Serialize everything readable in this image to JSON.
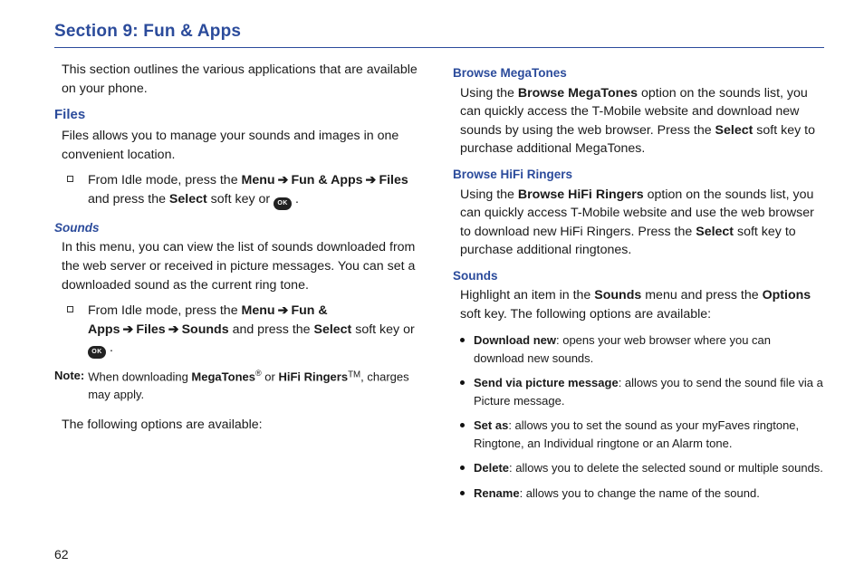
{
  "section_title": "Section 9: Fun & Apps",
  "page_number": "62",
  "left": {
    "intro": "This section outlines the various applications that are available on your phone.",
    "files_heading": "Files",
    "files_body": "Files allows you to manage your sounds and images in one convenient location.",
    "files_step_pre": "From Idle mode, press the ",
    "menu_label": "Menu",
    "arrow": "➔",
    "funapps_label": "Fun & Apps",
    "files_label": "Files",
    "files_step_mid": " and press the ",
    "select_label": "Select",
    "files_step_post": " soft key or ",
    "sounds_heading": "Sounds",
    "sounds_body": "In this menu, you can view the list of sounds downloaded from the web server or received in picture messages. You can set a downloaded sound as the current ring tone.",
    "sounds_step_pre": "From Idle mode, press the ",
    "sounds_label": "Sounds",
    "sounds_step_mid": " and press the ",
    "sounds_step_post": " soft key or ",
    "note_label": "Note:",
    "note_pre": "When downloading ",
    "megatones": "MegaTones",
    "note_or": " or ",
    "hifi": "HiFi Ringers",
    "note_suffix": ", charges may apply.",
    "options_intro": "The following options are available:",
    "ok": "OK"
  },
  "right": {
    "browse_mega_h": "Browse MegaTones",
    "browse_mega_p1": "Using the ",
    "browse_mega_b": "Browse MegaTones",
    "browse_mega_p2": " option on the sounds list, you can quickly access the T-Mobile website and download new sounds by using the web browser. Press the ",
    "browse_mega_p3": " soft key to purchase additional MegaTones.",
    "browse_hifi_h": "Browse HiFi Ringers",
    "browse_hifi_p1": "Using the ",
    "browse_hifi_b": "Browse HiFi Ringers",
    "browse_hifi_p2": " option on the sounds list, you can quickly access T-Mobile website and use the web browser to download new HiFi Ringers. Press the ",
    "browse_hifi_p3": " soft key to purchase additional ringtones.",
    "sounds_h": "Sounds",
    "sounds_p1": "Highlight an item in the ",
    "sounds_b1": "Sounds",
    "sounds_p2": " menu and press the ",
    "sounds_b2": "Options",
    "sounds_p3": " soft key. The following options are available:",
    "opts": [
      {
        "b": "Download new",
        "t": ": opens your web browser where you can download new sounds."
      },
      {
        "b": "Send via picture message",
        "t": ": allows you to send the sound file via a Picture message."
      },
      {
        "b": "Set as",
        "t": ": allows you to set the sound as your myFaves ringtone, Ringtone, an Individual ringtone or an Alarm tone."
      },
      {
        "b": "Delete",
        "t": ": allows you to delete the selected sound or multiple sounds."
      },
      {
        "b": "Rename",
        "t": ": allows you to change the name of the sound."
      }
    ],
    "select_label": "Select"
  }
}
